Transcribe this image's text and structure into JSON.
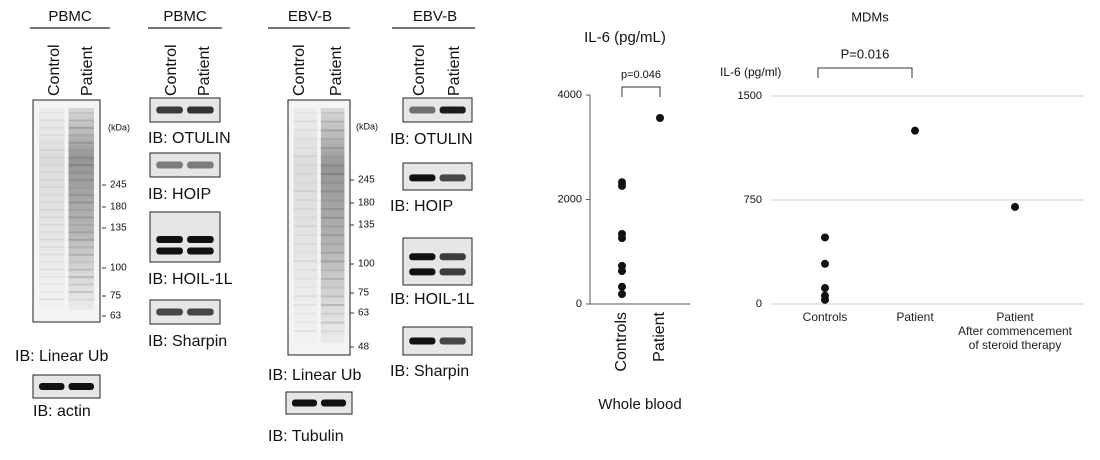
{
  "blots": [
    {
      "title": "PBMC",
      "lanes": [
        "Control",
        "Patient"
      ],
      "markers_title": "(kDa)",
      "markers": [
        "245",
        "180",
        "135",
        "100",
        "75",
        "63"
      ],
      "probes": [
        "IB: Linear Ub",
        "IB: actin"
      ]
    },
    {
      "title": "PBMC",
      "lanes": [
        "Control",
        "Patient"
      ],
      "probes": [
        "IB: OTULIN",
        "IB: HOIP",
        "IB: HOIL-1L",
        "IB: Sharpin"
      ]
    },
    {
      "title": "EBV-B",
      "lanes": [
        "Control",
        "Patient"
      ],
      "markers_title": "(kDa)",
      "markers": [
        "245",
        "180",
        "135",
        "100",
        "75",
        "63",
        "48"
      ],
      "probes": [
        "IB: Linear Ub",
        "IB: Tubulin"
      ]
    },
    {
      "title": "EBV-B",
      "lanes": [
        "Control",
        "Patient"
      ],
      "probes": [
        "IB: OTULIN",
        "IB: HOIP",
        "IB: HOIL-1L",
        "IB: Sharpin"
      ]
    }
  ],
  "chart_data": [
    {
      "type": "strip",
      "title": "IL-6 (pg/mL)",
      "xlabel": "Whole blood",
      "categories": [
        "Controls",
        "Patient"
      ],
      "values": [
        [
          2330,
          2260,
          1340,
          1260,
          730,
          630,
          330,
          190
        ],
        [
          3560
        ]
      ],
      "color": "#111111",
      "ylim": [
        0,
        4000
      ],
      "yticks": [
        0,
        2000,
        4000
      ],
      "grid": false,
      "annotation": "p=0.046"
    },
    {
      "type": "strip",
      "title": "MDMs",
      "ylabel": "IL-6 (pg/ml)",
      "categories": [
        "Controls",
        "Patient",
        "Patient\nAfter commencement\nof steroid therapy"
      ],
      "values": [
        [
          480,
          290,
          115,
          60,
          30
        ],
        [
          1250
        ],
        [
          700
        ]
      ],
      "color": "#111111",
      "ylim": [
        0,
        1500
      ],
      "yticks": [
        0,
        750,
        1500
      ],
      "grid": true,
      "annotation": "P=0.016"
    }
  ]
}
